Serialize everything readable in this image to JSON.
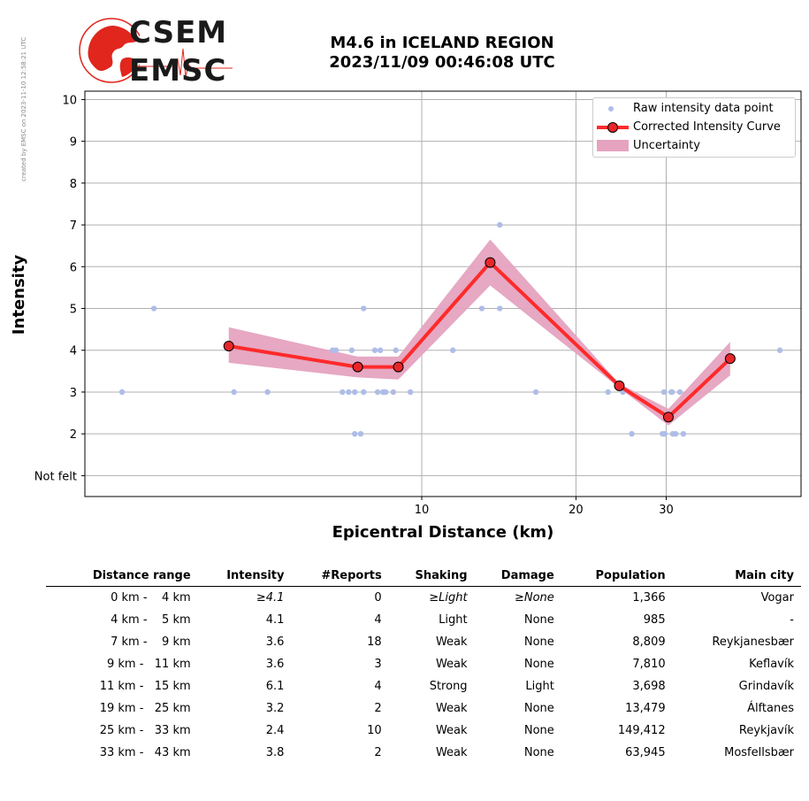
{
  "credit": "created by EMSC on 2023-11-10 12:58:21 UTC",
  "logo": {
    "line1": "CSEM",
    "line2": "EMSC"
  },
  "title": {
    "line1": "M4.6 in ICELAND REGION",
    "line2": "2023/11/09 00:46:08 UTC"
  },
  "colors": {
    "raw": "#aebde8",
    "curve": "#ff2a2a",
    "uncertainty": "#e5a3c0",
    "marker_fill": "#e8262a",
    "logo_red": "#e0261d"
  },
  "chart_data": {
    "type": "scatter",
    "xlabel": "Epicentral Distance (km)",
    "ylabel": "Intensity",
    "x_scale": "log",
    "xlim": [
      2.2,
      55
    ],
    "ylim": [
      0.5,
      10.2
    ],
    "grid": true,
    "legend_position": "top-right",
    "x_ticks": [
      {
        "value": 10,
        "label": "10"
      },
      {
        "value": 20,
        "label": "20"
      },
      {
        "value": 30,
        "label": "30"
      }
    ],
    "y_ticks": [
      {
        "value": 1,
        "label": "Not felt"
      },
      {
        "value": 2,
        "label": "2"
      },
      {
        "value": 3,
        "label": "3"
      },
      {
        "value": 4,
        "label": "4"
      },
      {
        "value": 5,
        "label": "5"
      },
      {
        "value": 6,
        "label": "6"
      },
      {
        "value": 7,
        "label": "7"
      },
      {
        "value": 8,
        "label": "8"
      },
      {
        "value": 9,
        "label": "9"
      },
      {
        "value": 10,
        "label": "10"
      }
    ],
    "series": [
      {
        "name": "Raw intensity data point",
        "kind": "points",
        "points": [
          [
            2.6,
            3
          ],
          [
            3.0,
            5
          ],
          [
            4.3,
            3
          ],
          [
            5.0,
            3
          ],
          [
            6.7,
            4
          ],
          [
            6.8,
            4
          ],
          [
            7.0,
            3
          ],
          [
            7.2,
            3
          ],
          [
            7.3,
            4
          ],
          [
            7.4,
            2
          ],
          [
            7.4,
            3
          ],
          [
            7.6,
            2
          ],
          [
            7.7,
            5
          ],
          [
            7.7,
            3
          ],
          [
            8.1,
            4
          ],
          [
            8.2,
            3
          ],
          [
            8.3,
            4
          ],
          [
            8.4,
            3
          ],
          [
            8.5,
            3
          ],
          [
            8.8,
            3
          ],
          [
            8.9,
            4
          ],
          [
            9.5,
            3
          ],
          [
            11.5,
            4
          ],
          [
            13.1,
            5
          ],
          [
            14.2,
            5
          ],
          [
            14.2,
            7
          ],
          [
            16.7,
            3
          ],
          [
            23.1,
            3
          ],
          [
            24.7,
            3
          ],
          [
            25.7,
            2
          ],
          [
            29.5,
            2
          ],
          [
            29.7,
            3
          ],
          [
            29.8,
            2
          ],
          [
            30.7,
            3
          ],
          [
            30.8,
            3
          ],
          [
            30.9,
            2
          ],
          [
            31.3,
            2
          ],
          [
            31.9,
            3
          ],
          [
            32.4,
            2
          ],
          [
            50.0,
            4
          ]
        ]
      },
      {
        "name": "Corrected Intensity Curve",
        "kind": "line",
        "points": [
          [
            4.2,
            4.1
          ],
          [
            7.5,
            3.6
          ],
          [
            9.0,
            3.6
          ],
          [
            13.6,
            6.1
          ],
          [
            24.3,
            3.15
          ],
          [
            30.3,
            2.4
          ],
          [
            40.0,
            3.8
          ]
        ]
      },
      {
        "name": "Uncertainty",
        "kind": "band",
        "upper": [
          [
            4.2,
            4.55
          ],
          [
            7.5,
            3.85
          ],
          [
            9.0,
            3.85
          ],
          [
            13.6,
            6.65
          ],
          [
            24.3,
            3.2
          ],
          [
            30.3,
            2.6
          ],
          [
            40.0,
            4.2
          ]
        ],
        "lower": [
          [
            4.2,
            3.7
          ],
          [
            7.5,
            3.35
          ],
          [
            9.0,
            3.3
          ],
          [
            13.6,
            5.55
          ],
          [
            24.3,
            3.1
          ],
          [
            30.3,
            2.2
          ],
          [
            40.0,
            3.4
          ]
        ]
      }
    ]
  },
  "table": {
    "headers": [
      "Distance range",
      "Intensity",
      "#Reports",
      "Shaking",
      "Damage",
      "Population",
      "Main city"
    ],
    "rows": [
      [
        "0 km -    4 km",
        "≥4.1",
        "0",
        "≥Light",
        "≥None",
        "1,366",
        "Vogar"
      ],
      [
        "4 km -    5 km",
        "4.1",
        "4",
        "Light",
        "None",
        "985",
        "-"
      ],
      [
        "7 km -    9 km",
        "3.6",
        "18",
        "Weak",
        "None",
        "8,809",
        "Reykjanesbær"
      ],
      [
        "9 km -   11 km",
        "3.6",
        "3",
        "Weak",
        "None",
        "7,810",
        "Keflavík"
      ],
      [
        "11 km -   15 km",
        "6.1",
        "4",
        "Strong",
        "Light",
        "3,698",
        "Grindavík"
      ],
      [
        "19 km -   25 km",
        "3.2",
        "2",
        "Weak",
        "None",
        "13,479",
        "Álftanes"
      ],
      [
        "25 km -   33 km",
        "2.4",
        "10",
        "Weak",
        "None",
        "149,412",
        "Reykjavík"
      ],
      [
        "33 km -   43 km",
        "3.8",
        "2",
        "Weak",
        "None",
        "63,945",
        "Mosfellsbær"
      ]
    ]
  }
}
